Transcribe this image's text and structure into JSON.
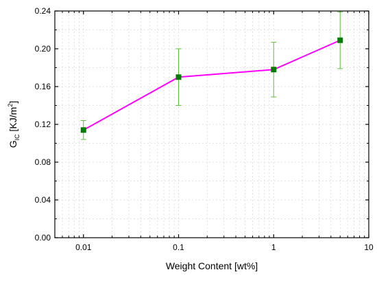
{
  "chart_data": {
    "type": "line",
    "x_scale": "log",
    "x": [
      0.01,
      0.1,
      1,
      5
    ],
    "series": [
      {
        "values": [
          0.114,
          0.17,
          0.178,
          0.209
        ],
        "error": [
          0.01,
          0.03,
          0.029,
          0.03
        ],
        "line_color": "#ff00ff",
        "marker_color": "#007a00",
        "errorbar_color": "#5fbf3f",
        "marker": "square"
      }
    ],
    "xlabel": "Weight Content [wt%]",
    "ylabel": {
      "main": "G",
      "subscript": "IC",
      "units": " [KJ/m",
      "superscript": "2",
      "close": "]"
    },
    "xlim": [
      0.005,
      10
    ],
    "ylim": [
      0.0,
      0.24
    ],
    "x_ticks": [
      0.01,
      0.1,
      1,
      10
    ],
    "x_tick_labels": [
      "0.01",
      "0.1",
      "1",
      "10"
    ],
    "y_ticks": [
      0.0,
      0.04,
      0.08,
      0.12,
      0.16,
      0.2,
      0.24
    ],
    "y_tick_labels": [
      "0.00",
      "0.04",
      "0.08",
      "0.12",
      "0.16",
      "0.20",
      "0.24"
    ],
    "grid": true
  }
}
